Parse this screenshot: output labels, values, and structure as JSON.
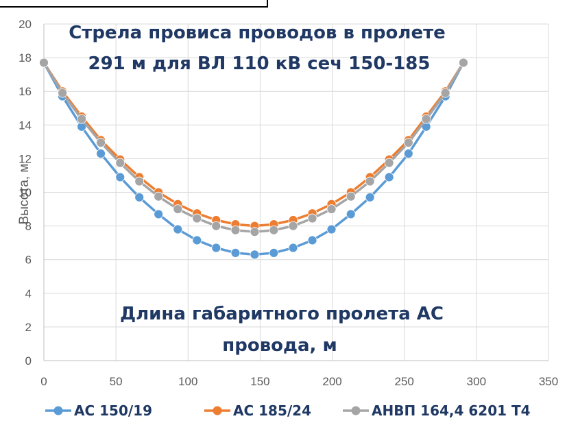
{
  "chart_data": {
    "type": "line",
    "title": [
      "Стрела провиса проводов в пролете",
      "291 м для ВЛ 110 кВ сеч 150-185"
    ],
    "xlabel": [
      "Длина габаритного пролета АС",
      "провода, м"
    ],
    "ylabel": "Высота, м",
    "xlim": [
      0,
      350
    ],
    "ylim": [
      0,
      20
    ],
    "xticks": [
      "0",
      "50",
      "100",
      "150",
      "200",
      "250",
      "300",
      "350"
    ],
    "yticks": [
      "0",
      "2",
      "4",
      "6",
      "8",
      "10",
      "12",
      "14",
      "16",
      "18",
      "20"
    ],
    "grid": true,
    "legend_position": "bottom",
    "x": [
      0,
      12.9,
      26.2,
      39.5,
      52.9,
      66.2,
      79.5,
      92.9,
      106.2,
      119.5,
      132.9,
      146.2,
      159.5,
      172.9,
      186.2,
      199.5,
      212.9,
      226.2,
      239.5,
      252.9,
      265.2,
      278.5,
      291
    ],
    "series": [
      {
        "name": "АС 150/19",
        "color": "#5b9bd5",
        "values": [
          17.7,
          15.7,
          13.9,
          12.3,
          10.9,
          9.7,
          8.7,
          7.8,
          7.15,
          6.7,
          6.4,
          6.3,
          6.4,
          6.7,
          7.15,
          7.8,
          8.7,
          9.7,
          10.9,
          12.3,
          13.9,
          15.7,
          17.7
        ]
      },
      {
        "name": "АС 185/24",
        "color": "#ed7d31",
        "values": [
          17.7,
          16.0,
          14.5,
          13.1,
          11.95,
          10.9,
          10.0,
          9.3,
          8.75,
          8.35,
          8.1,
          8.0,
          8.1,
          8.35,
          8.75,
          9.3,
          10.0,
          10.9,
          11.95,
          13.1,
          14.5,
          16.0,
          17.7
        ]
      },
      {
        "name": "АНВП 164,4 6201 Т4",
        "color": "#a5a5a5",
        "values": [
          17.7,
          15.9,
          14.35,
          12.95,
          11.75,
          10.65,
          9.75,
          9.0,
          8.45,
          8.0,
          7.75,
          7.65,
          7.75,
          8.0,
          8.45,
          9.0,
          9.75,
          10.65,
          11.75,
          12.95,
          14.35,
          15.9,
          17.7
        ]
      }
    ]
  }
}
